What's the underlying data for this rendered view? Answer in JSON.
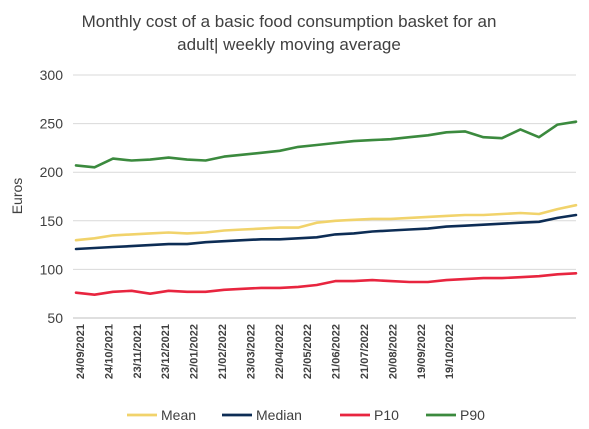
{
  "chart_data": {
    "type": "line",
    "title_lines": [
      "Monthly cost of a basic food consumption basket for an",
      "adult| weekly moving average"
    ],
    "ylabel": "Euros",
    "xlabel": "",
    "ylim": [
      50,
      300
    ],
    "yticks": [
      "50",
      "100",
      "150",
      "200",
      "250",
      "300"
    ],
    "xtick_labels": [
      "24/09/2021",
      "24/10/2021",
      "23/11/2021",
      "23/12/2021",
      "22/01/2022",
      "21/02/2022",
      "23/03/2022",
      "22/04/2022",
      "22/05/2022",
      "21/06/2022",
      "21/07/2022",
      "20/08/2022",
      "19/09/2022",
      "19/10/2022"
    ],
    "grid": "horizontal",
    "legend_position": "bottom",
    "x_points": [
      "24/09/2021",
      "09/10/2021",
      "24/10/2021",
      "08/11/2021",
      "23/11/2021",
      "08/12/2021",
      "23/12/2021",
      "07/01/2022",
      "22/01/2022",
      "06/02/2022",
      "21/02/2022",
      "08/03/2022",
      "23/03/2022",
      "07/04/2022",
      "22/04/2022",
      "07/05/2022",
      "22/05/2022",
      "06/06/2022",
      "21/06/2022",
      "06/07/2022",
      "21/07/2022",
      "05/08/2022",
      "20/08/2022",
      "04/09/2022",
      "19/09/2022",
      "04/10/2022",
      "19/10/2022",
      "27/10/2022"
    ],
    "series": [
      {
        "name": "Mean",
        "color": "#f1d36b",
        "values": [
          130,
          132,
          135,
          136,
          137,
          138,
          137,
          138,
          140,
          141,
          142,
          143,
          143,
          148,
          150,
          151,
          152,
          152,
          153,
          154,
          155,
          156,
          156,
          157,
          158,
          157,
          162,
          166
        ]
      },
      {
        "name": "Median",
        "color": "#0d2d55",
        "values": [
          121,
          122,
          123,
          124,
          125,
          126,
          126,
          128,
          129,
          130,
          131,
          131,
          132,
          133,
          136,
          137,
          139,
          140,
          141,
          142,
          144,
          145,
          146,
          147,
          148,
          149,
          153,
          156
        ]
      },
      {
        "name": "P10",
        "color": "#e8253f",
        "values": [
          76,
          74,
          77,
          78,
          75,
          78,
          77,
          77,
          79,
          80,
          81,
          81,
          82,
          84,
          88,
          88,
          89,
          88,
          87,
          87,
          89,
          90,
          91,
          91,
          92,
          93,
          95,
          96
        ]
      },
      {
        "name": "P90",
        "color": "#3b8a3e",
        "values": [
          207,
          205,
          214,
          212,
          213,
          215,
          213,
          212,
          216,
          218,
          220,
          222,
          226,
          228,
          230,
          232,
          233,
          234,
          236,
          238,
          241,
          242,
          236,
          235,
          244,
          236,
          249,
          252
        ]
      }
    ]
  }
}
